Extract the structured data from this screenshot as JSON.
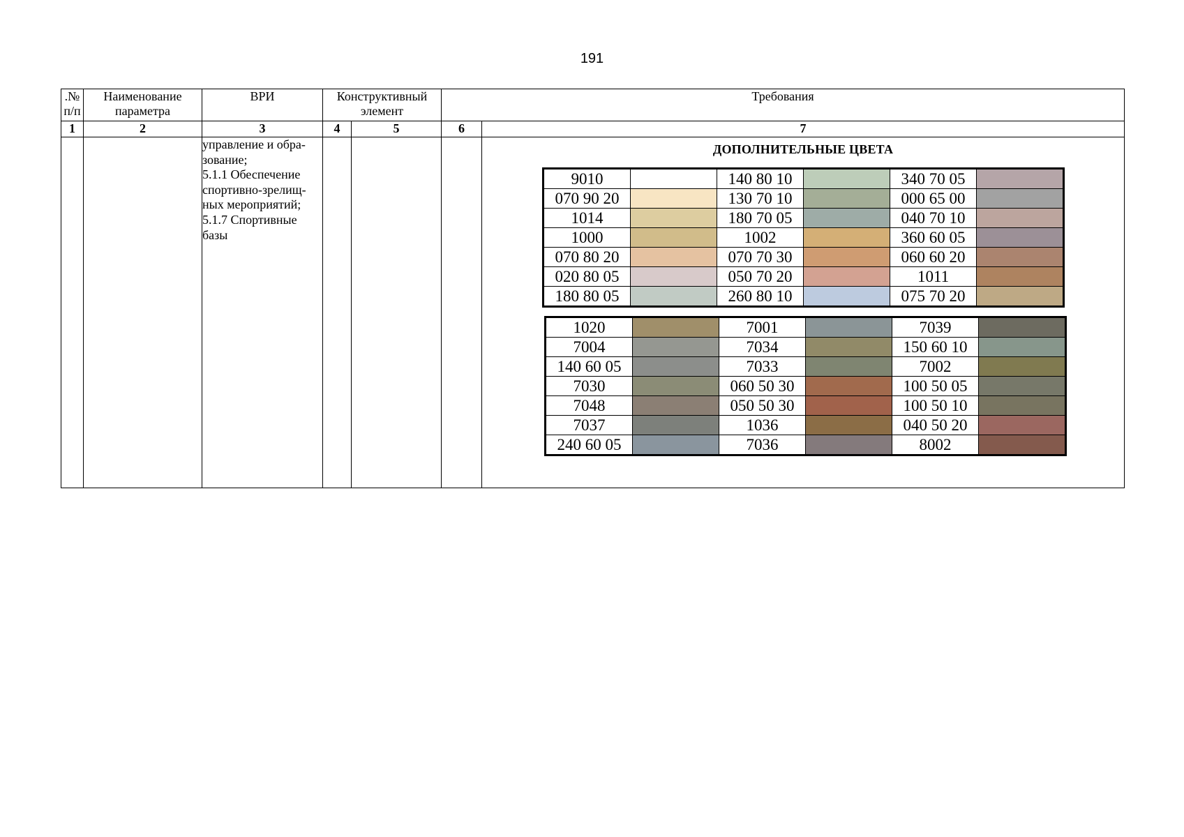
{
  "page_number": "191",
  "table": {
    "headers": {
      "col1": ".№ п/п",
      "col2": "Наименование параметра",
      "col3": "ВРИ",
      "col4": "Конструктивный элемент",
      "col5": "Требования"
    },
    "numbers": [
      "1",
      "2",
      "3",
      "4",
      "5",
      "6",
      "7"
    ],
    "vri_lines": [
      "управление и обра-",
      "зование;",
      "5.1.1 Обеспечение",
      "спортивно-зрелищ-",
      "ных мероприятий;",
      "5.1.7 Спортивные",
      "базы"
    ],
    "colors_title": "ДОПОЛНИТЕЛЬНЫЕ ЦВЕТА",
    "palette_1": [
      [
        {
          "code": "9010",
          "color": "#ffffff"
        },
        {
          "code": "140 80 10",
          "color": "#bdcdb9"
        },
        {
          "code": "340 70 05",
          "color": "#b5a5a8"
        }
      ],
      [
        {
          "code": "070 90 20",
          "color": "#f8e5c3"
        },
        {
          "code": "130 70 10",
          "color": "#a4ae97"
        },
        {
          "code": "000 65 00",
          "color": "#a2a2a2"
        }
      ],
      [
        {
          "code": "1014",
          "color": "#ddcda0"
        },
        {
          "code": "180 70 05",
          "color": "#9eaca7"
        },
        {
          "code": "040 70 10",
          "color": "#bca59e"
        }
      ],
      [
        {
          "code": "1000",
          "color": "#d1bc8a"
        },
        {
          "code": "1002",
          "color": "#d4af76"
        },
        {
          "code": "360 60 05",
          "color": "#9c9097"
        }
      ],
      [
        {
          "code": "070 80 20",
          "color": "#e5c2a1"
        },
        {
          "code": "070 70 30",
          "color": "#cf9c72"
        },
        {
          "code": "060 60 20",
          "color": "#ab846f"
        }
      ],
      [
        {
          "code": "020 80 05",
          "color": "#d8caca"
        },
        {
          "code": "050 70 20",
          "color": "#d3a292"
        },
        {
          "code": "1011",
          "color": "#ae8360"
        }
      ],
      [
        {
          "code": "180 80 05",
          "color": "#c1cbc4"
        },
        {
          "code": "260 80 10",
          "color": "#bdcbdf"
        },
        {
          "code": "075 70 20",
          "color": "#bea985"
        }
      ]
    ],
    "palette_2": [
      [
        {
          "code": "1020",
          "color": "#a08f6a"
        },
        {
          "code": "7001",
          "color": "#8b9597"
        },
        {
          "code": "7039",
          "color": "#6d6b60"
        }
      ],
      [
        {
          "code": "7004",
          "color": "#959791"
        },
        {
          "code": "7034",
          "color": "#918a68"
        },
        {
          "code": "150 60 10",
          "color": "#87968b"
        }
      ],
      [
        {
          "code": "140 60 05",
          "color": "#8c8e8b"
        },
        {
          "code": "7033",
          "color": "#7f8571"
        },
        {
          "code": "7002",
          "color": "#807a50"
        }
      ],
      [
        {
          "code": "7030",
          "color": "#8b8c76"
        },
        {
          "code": "060 50 30",
          "color": "#a16a4d"
        },
        {
          "code": "100 50 05",
          "color": "#777869"
        }
      ],
      [
        {
          "code": "7048",
          "color": "#8b7f74"
        },
        {
          "code": "050 50 30",
          "color": "#a1624b"
        },
        {
          "code": "100 50 10",
          "color": "#787460"
        }
      ],
      [
        {
          "code": "7037",
          "color": "#7d807b"
        },
        {
          "code": "1036",
          "color": "#8b6d46"
        },
        {
          "code": "040 50 20",
          "color": "#9b6760"
        }
      ],
      [
        {
          "code": "240 60 05",
          "color": "#8a959e"
        },
        {
          "code": "7036",
          "color": "#847a7c"
        },
        {
          "code": "8002",
          "color": "#845a4d"
        }
      ]
    ]
  }
}
